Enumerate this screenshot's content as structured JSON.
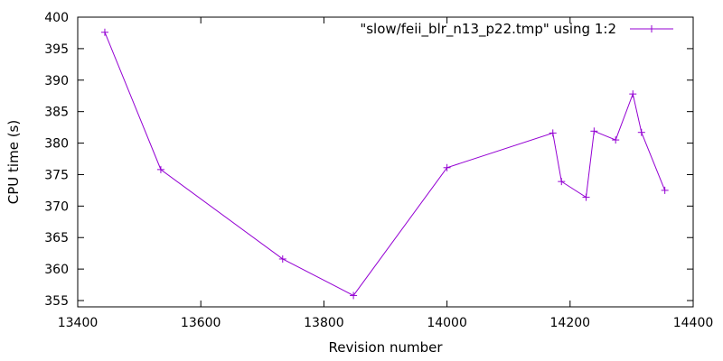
{
  "chart_data": {
    "type": "line",
    "title": "",
    "xlabel": "Revision number",
    "ylabel": "CPU time (s)",
    "xlim": [
      13400,
      14400
    ],
    "ylim": [
      354,
      400
    ],
    "x_ticks": [
      13400,
      13600,
      13800,
      14000,
      14200,
      14400
    ],
    "y_ticks": [
      355,
      360,
      365,
      370,
      375,
      380,
      385,
      390,
      395,
      400
    ],
    "grid": false,
    "legend_position": "top-right",
    "series": [
      {
        "name": "\"slow/feii_blr_n13_p22.tmp\" using 1:2",
        "color": "#9400d3",
        "marker": "plus",
        "points": [
          {
            "x": 13444,
            "y": 397.6
          },
          {
            "x": 13535,
            "y": 375.8
          },
          {
            "x": 13733,
            "y": 361.6
          },
          {
            "x": 13848,
            "y": 355.8
          },
          {
            "x": 14000,
            "y": 376.1
          },
          {
            "x": 14172,
            "y": 381.6
          },
          {
            "x": 14186,
            "y": 373.9
          },
          {
            "x": 14226,
            "y": 371.4
          },
          {
            "x": 14239,
            "y": 381.9
          },
          {
            "x": 14274,
            "y": 380.5
          },
          {
            "x": 14302,
            "y": 387.8
          },
          {
            "x": 14316,
            "y": 381.7
          },
          {
            "x": 14354,
            "y": 372.5
          }
        ]
      }
    ]
  }
}
